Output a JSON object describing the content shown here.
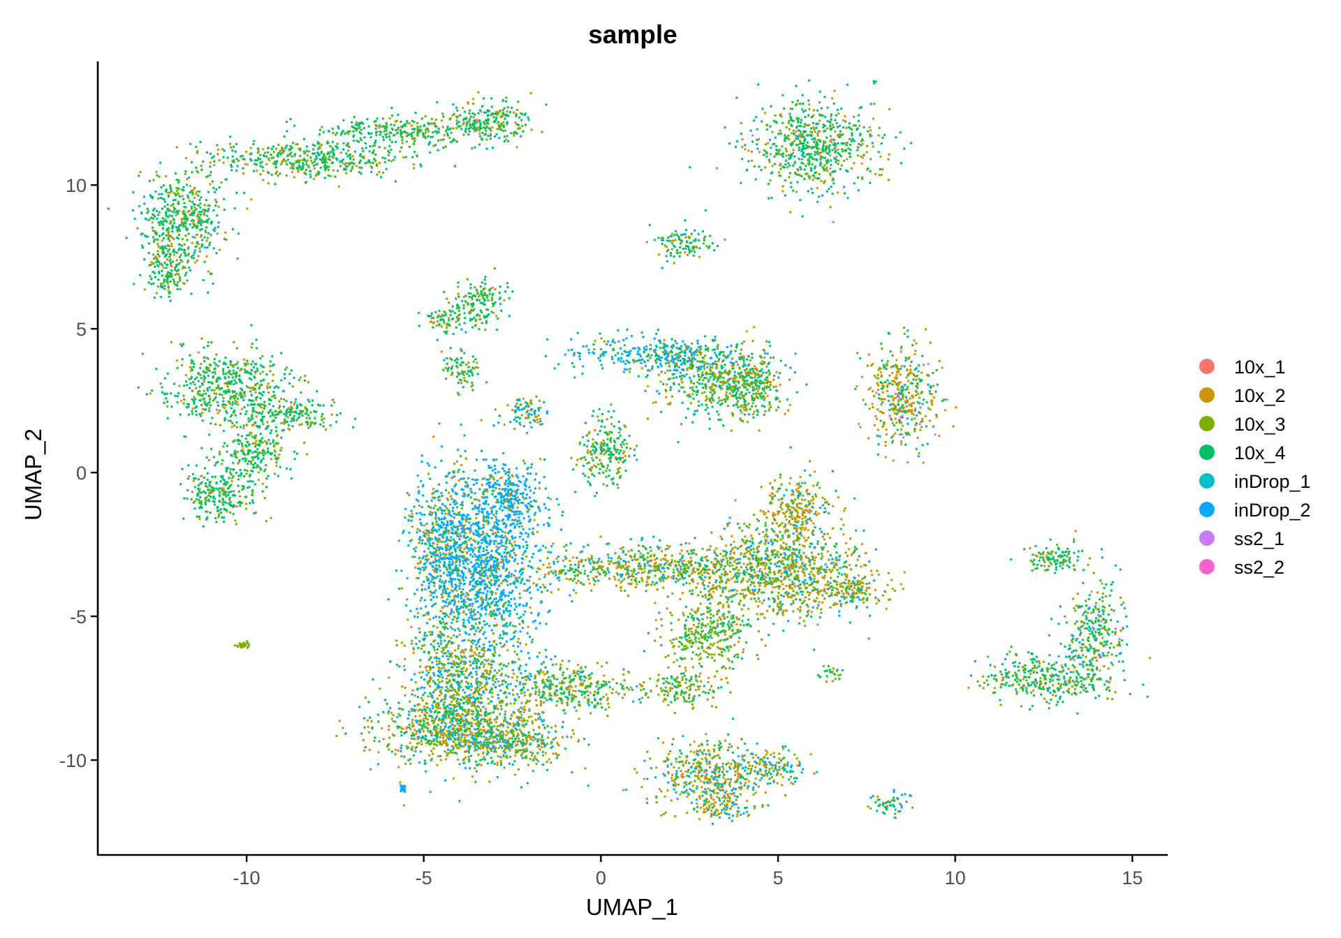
{
  "chart_data": {
    "type": "scatter",
    "title": "sample",
    "xlabel": "UMAP_1",
    "ylabel": "UMAP_2",
    "xlim": [
      -14.2,
      16
    ],
    "ylim": [
      -13.3,
      14.3
    ],
    "xticks": [
      -10,
      -5,
      0,
      5,
      10,
      15
    ],
    "yticks": [
      -10,
      -5,
      0,
      5,
      10
    ],
    "grid": false,
    "legend_position": "right",
    "series": [
      {
        "name": "10x_1",
        "color": "#F8766D"
      },
      {
        "name": "10x_2",
        "color": "#CD9600"
      },
      {
        "name": "10x_3",
        "color": "#7CAE00"
      },
      {
        "name": "10x_4",
        "color": "#00BE67"
      },
      {
        "name": "inDrop_1",
        "color": "#00BFC4"
      },
      {
        "name": "inDrop_2",
        "color": "#00A9FF"
      },
      {
        "name": "ss2_1",
        "color": "#C77CFF"
      },
      {
        "name": "ss2_2",
        "color": "#FF61CC"
      }
    ],
    "clusters": [
      {
        "cx": -11.8,
        "cy": 8.8,
        "sx": 0.6,
        "sy": 0.9,
        "mix": [
          0,
          0.15,
          0.15,
          0.68,
          0,
          0.02,
          0,
          0
        ]
      },
      {
        "cx": -12.2,
        "cy": 7.0,
        "sx": 0.3,
        "sy": 0.5,
        "mix": [
          0,
          0.1,
          0.2,
          0.7,
          0,
          0,
          0,
          0
        ]
      },
      {
        "cx": -8.2,
        "cy": 10.9,
        "sx": 1.4,
        "sy": 0.35,
        "mix": [
          0,
          0.15,
          0.2,
          0.65,
          0,
          0,
          0,
          0
        ]
      },
      {
        "cx": -5.5,
        "cy": 11.9,
        "sx": 1.2,
        "sy": 0.25,
        "mix": [
          0,
          0.1,
          0.2,
          0.7,
          0,
          0,
          0,
          0
        ]
      },
      {
        "cx": -3.1,
        "cy": 12.2,
        "sx": 0.6,
        "sy": 0.4,
        "mix": [
          0,
          0.15,
          0.2,
          0.63,
          0,
          0,
          0,
          0.02
        ]
      },
      {
        "cx": 6.0,
        "cy": 11.4,
        "sx": 0.9,
        "sy": 0.8,
        "mix": [
          0,
          0.15,
          0.2,
          0.6,
          0,
          0.03,
          0.01,
          0.01
        ]
      },
      {
        "cx": 2.4,
        "cy": 8.0,
        "sx": 0.4,
        "sy": 0.3,
        "mix": [
          0,
          0.1,
          0.2,
          0.6,
          0,
          0.1,
          0,
          0
        ]
      },
      {
        "cx": -3.5,
        "cy": 5.9,
        "sx": 0.4,
        "sy": 0.4,
        "mix": [
          0,
          0.1,
          0.2,
          0.7,
          0,
          0,
          0,
          0
        ]
      },
      {
        "cx": -4.3,
        "cy": 5.3,
        "sx": 0.4,
        "sy": 0.2,
        "mix": [
          0,
          0.15,
          0.25,
          0.6,
          0,
          0,
          0,
          0
        ]
      },
      {
        "cx": -3.9,
        "cy": 3.6,
        "sx": 0.3,
        "sy": 0.3,
        "mix": [
          0,
          0.1,
          0.3,
          0.6,
          0,
          0,
          0,
          0
        ]
      },
      {
        "cx": -10.6,
        "cy": 3.0,
        "sx": 0.9,
        "sy": 0.6,
        "mix": [
          0,
          0.1,
          0.2,
          0.7,
          0,
          0,
          0,
          0
        ]
      },
      {
        "cx": -8.8,
        "cy": 2.0,
        "sx": 0.7,
        "sy": 0.3,
        "mix": [
          0,
          0.1,
          0.2,
          0.7,
          0,
          0,
          0,
          0
        ]
      },
      {
        "cx": -10.8,
        "cy": -0.8,
        "sx": 0.55,
        "sy": 0.45,
        "mix": [
          0,
          0.1,
          0.2,
          0.7,
          0,
          0,
          0,
          0
        ]
      },
      {
        "cx": -9.8,
        "cy": 0.7,
        "sx": 0.5,
        "sy": 0.5,
        "mix": [
          0,
          0.1,
          0.2,
          0.7,
          0,
          0,
          0,
          0
        ]
      },
      {
        "cx": 1.8,
        "cy": 4.1,
        "sx": 1.3,
        "sy": 0.3,
        "mix": [
          0,
          0.05,
          0.1,
          0.2,
          0,
          0.65,
          0,
          0
        ]
      },
      {
        "cx": 3.3,
        "cy": 3.2,
        "sx": 0.8,
        "sy": 0.6,
        "mix": [
          0,
          0.2,
          0.3,
          0.45,
          0,
          0.05,
          0,
          0
        ]
      },
      {
        "cx": 4.3,
        "cy": 3.0,
        "sx": 0.4,
        "sy": 0.6,
        "mix": [
          0,
          0.2,
          0.3,
          0.45,
          0,
          0.05,
          0,
          0
        ]
      },
      {
        "cx": -2.1,
        "cy": 2.1,
        "sx": 0.3,
        "sy": 0.3,
        "mix": [
          0,
          0.15,
          0.2,
          0.2,
          0,
          0.45,
          0,
          0
        ]
      },
      {
        "cx": 0.1,
        "cy": 0.7,
        "sx": 0.4,
        "sy": 0.6,
        "mix": [
          0,
          0.1,
          0.3,
          0.6,
          0,
          0,
          0,
          0
        ]
      },
      {
        "cx": 8.5,
        "cy": 2.6,
        "sx": 0.5,
        "sy": 0.9,
        "mix": [
          0,
          0.4,
          0.15,
          0.3,
          0,
          0.1,
          0.03,
          0.02
        ]
      },
      {
        "cx": -4.4,
        "cy": -2.5,
        "sx": 0.5,
        "sy": 1.3,
        "mix": [
          0,
          0.15,
          0.1,
          0.15,
          0,
          0.6,
          0,
          0
        ]
      },
      {
        "cx": -3.2,
        "cy": -3.4,
        "sx": 0.8,
        "sy": 1.5,
        "mix": [
          0,
          0.1,
          0.05,
          0.1,
          0,
          0.75,
          0,
          0
        ]
      },
      {
        "cx": -2.6,
        "cy": -0.8,
        "sx": 0.5,
        "sy": 0.6,
        "mix": [
          0,
          0.1,
          0.05,
          0.1,
          0,
          0.75,
          0,
          0
        ]
      },
      {
        "cx": -4.0,
        "cy": -7.3,
        "sx": 0.8,
        "sy": 1.3,
        "mix": [
          0,
          0.2,
          0.25,
          0.25,
          0,
          0.3,
          0,
          0
        ]
      },
      {
        "cx": -4.3,
        "cy": -9.0,
        "sx": 1.1,
        "sy": 0.5,
        "mix": [
          0,
          0.3,
          0.3,
          0.25,
          0,
          0.15,
          0,
          0
        ]
      },
      {
        "cx": -2.6,
        "cy": -9.3,
        "sx": 0.9,
        "sy": 0.5,
        "mix": [
          0,
          0.25,
          0.25,
          0.25,
          0,
          0.25,
          0,
          0
        ]
      },
      {
        "cx": -1.0,
        "cy": -7.5,
        "sx": 1.0,
        "sy": 0.4,
        "mix": [
          0,
          0.2,
          0.4,
          0.3,
          0,
          0.1,
          0,
          0
        ]
      },
      {
        "cx": 1.5,
        "cy": -3.3,
        "sx": 1.8,
        "sy": 0.4,
        "mix": [
          0,
          0.3,
          0.3,
          0.25,
          0,
          0.15,
          0,
          0
        ]
      },
      {
        "cx": 5.0,
        "cy": -3.5,
        "sx": 1.2,
        "sy": 0.8,
        "mix": [
          0,
          0.3,
          0.3,
          0.25,
          0,
          0.15,
          0,
          0
        ]
      },
      {
        "cx": 5.5,
        "cy": -1.3,
        "sx": 0.5,
        "sy": 0.6,
        "mix": [
          0,
          0.5,
          0.2,
          0.2,
          0,
          0.1,
          0,
          0
        ]
      },
      {
        "cx": 7.1,
        "cy": -4.1,
        "sx": 0.5,
        "sy": 0.3,
        "mix": [
          0,
          0.4,
          0.3,
          0.2,
          0,
          0.1,
          0,
          0
        ]
      },
      {
        "cx": 3.0,
        "cy": -5.6,
        "sx": 0.6,
        "sy": 0.6,
        "mix": [
          0,
          0.1,
          0.5,
          0.4,
          0,
          0,
          0,
          0
        ]
      },
      {
        "cx": 2.3,
        "cy": -7.5,
        "sx": 0.5,
        "sy": 0.3,
        "mix": [
          0,
          0.1,
          0.5,
          0.4,
          0,
          0,
          0,
          0
        ]
      },
      {
        "cx": 3.0,
        "cy": -10.5,
        "sx": 0.8,
        "sy": 0.6,
        "mix": [
          0,
          0.4,
          0.2,
          0.15,
          0,
          0.25,
          0,
          0
        ]
      },
      {
        "cx": 4.8,
        "cy": -10.2,
        "sx": 0.5,
        "sy": 0.3,
        "mix": [
          0,
          0.35,
          0.2,
          0.2,
          0,
          0.25,
          0,
          0
        ]
      },
      {
        "cx": 3.4,
        "cy": -11.6,
        "sx": 0.4,
        "sy": 0.25,
        "mix": [
          0,
          0.5,
          0.15,
          0.15,
          0,
          0.2,
          0,
          0
        ]
      },
      {
        "cx": 8.2,
        "cy": -11.5,
        "sx": 0.3,
        "sy": 0.2,
        "mix": [
          0,
          0.1,
          0.2,
          0.5,
          0,
          0.2,
          0,
          0
        ]
      },
      {
        "cx": 12.9,
        "cy": -3.0,
        "sx": 0.5,
        "sy": 0.25,
        "mix": [
          0,
          0.1,
          0.2,
          0.7,
          0,
          0,
          0,
          0
        ]
      },
      {
        "cx": 12.6,
        "cy": -7.2,
        "sx": 0.9,
        "sy": 0.4,
        "mix": [
          0,
          0.1,
          0.25,
          0.6,
          0,
          0.05,
          0,
          0
        ]
      },
      {
        "cx": 13.9,
        "cy": -5.7,
        "sx": 0.4,
        "sy": 0.8,
        "mix": [
          0,
          0.1,
          0.2,
          0.5,
          0,
          0.15,
          0.03,
          0.02
        ]
      },
      {
        "cx": -5.6,
        "cy": -11.0,
        "sx": 0.05,
        "sy": 0.05,
        "mix": [
          0,
          0,
          0,
          0,
          0,
          1,
          0,
          0
        ]
      },
      {
        "cx": -10.1,
        "cy": -6.0,
        "sx": 0.1,
        "sy": 0.05,
        "mix": [
          0,
          0,
          1,
          0,
          0,
          0,
          0,
          0
        ]
      },
      {
        "cx": 6.5,
        "cy": -7.0,
        "sx": 0.15,
        "sy": 0.15,
        "mix": [
          0,
          0,
          0.5,
          0.5,
          0,
          0,
          0,
          0
        ]
      }
    ]
  }
}
